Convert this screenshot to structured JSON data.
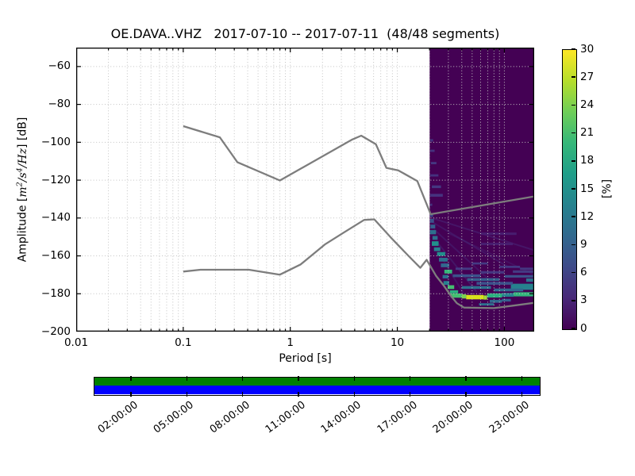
{
  "chart_data": {
    "type": "heatmap",
    "title": "OE.DAVA..VHZ   2017-07-10 -- 2017-07-11  (48/48 segments)",
    "xlabel": "Period [s]",
    "ylabel": {
      "prefix": "Amplitude [",
      "m": "m",
      "sup2": "2",
      "s": "/s",
      "sup4": "4",
      "hz": "/Hz",
      "suffix": "] [dB]"
    },
    "x_axis": {
      "scale": "log",
      "min": 0.01,
      "max": 190,
      "ticks": [
        {
          "v": 0.01,
          "label": "0.01"
        },
        {
          "v": 0.1,
          "label": "0.1"
        },
        {
          "v": 1,
          "label": "1"
        },
        {
          "v": 10,
          "label": "10"
        },
        {
          "v": 100,
          "label": "100"
        }
      ]
    },
    "y_axis": {
      "min": -200,
      "max": -50,
      "ticks": [
        {
          "v": -60,
          "label": "−60"
        },
        {
          "v": -80,
          "label": "−80"
        },
        {
          "v": -100,
          "label": "−100"
        },
        {
          "v": -120,
          "label": "−120"
        },
        {
          "v": -140,
          "label": "−140"
        },
        {
          "v": -160,
          "label": "−160"
        },
        {
          "v": -180,
          "label": "−180"
        },
        {
          "v": -200,
          "label": "−200"
        }
      ]
    },
    "grid": {
      "color": "#c3c3c3",
      "style": "dotted"
    },
    "colorbar": {
      "label": "[%]",
      "min": 0,
      "max": 30,
      "colormap": "viridis",
      "ticks": [
        {
          "v": 0,
          "label": "0"
        },
        {
          "v": 3,
          "label": "3"
        },
        {
          "v": 6,
          "label": "6"
        },
        {
          "v": 9,
          "label": "9"
        },
        {
          "v": 12,
          "label": "12"
        },
        {
          "v": 15,
          "label": "15"
        },
        {
          "v": 18,
          "label": "18"
        },
        {
          "v": 21,
          "label": "21"
        },
        {
          "v": 24,
          "label": "24"
        },
        {
          "v": 27,
          "label": "27"
        },
        {
          "v": 30,
          "label": "30"
        }
      ],
      "stops": [
        "#440154",
        "#482878",
        "#3e4a89",
        "#31688e",
        "#26828e",
        "#1f9e89",
        "#35b779",
        "#6ece58",
        "#b5de2b",
        "#fde725"
      ]
    },
    "noise_models": {
      "color": "#7d7d7d",
      "high": [
        [
          0.1,
          -91.5
        ],
        [
          0.22,
          -97.4
        ],
        [
          0.32,
          -110.5
        ],
        [
          0.8,
          -120.2
        ],
        [
          3.8,
          -98.5
        ],
        [
          4.6,
          -96.5
        ],
        [
          6.3,
          -101
        ],
        [
          7.9,
          -113.5
        ],
        [
          10.2,
          -114.8
        ],
        [
          15.4,
          -120.5
        ],
        [
          20.5,
          -138
        ],
        [
          190,
          -128.6
        ]
      ],
      "low": [
        [
          0.1,
          -168.3
        ],
        [
          0.145,
          -167.3
        ],
        [
          0.41,
          -167.3
        ],
        [
          0.8,
          -169.9
        ],
        [
          1.25,
          -164.5
        ],
        [
          2.1,
          -154
        ],
        [
          3.2,
          -147.5
        ],
        [
          4.9,
          -141
        ],
        [
          6.1,
          -140.7
        ],
        [
          8.7,
          -150.3
        ],
        [
          12.7,
          -160
        ],
        [
          16.4,
          -166.3
        ],
        [
          18.8,
          -162.1
        ],
        [
          23,
          -170.5
        ],
        [
          27,
          -175.5
        ],
        [
          31.6,
          -181
        ],
        [
          36,
          -185
        ],
        [
          42,
          -187.3
        ],
        [
          80,
          -187.6
        ],
        [
          120,
          -186.3
        ],
        [
          190,
          -184.8
        ]
      ]
    },
    "histogram": {
      "period_min": 20,
      "period_max": 190,
      "background": "#440154",
      "streaks": [
        [
          20.3,
          21.6,
          -99,
          1.3,
          "#45317e"
        ],
        [
          20.3,
          22.3,
          -104.5,
          1.2,
          "#45317e"
        ],
        [
          20.6,
          23.2,
          -111,
          1.2,
          "#453781"
        ],
        [
          20.3,
          24.2,
          -117.5,
          1.2,
          "#45317e"
        ],
        [
          21,
          25.6,
          -123.5,
          1.4,
          "#453781"
        ],
        [
          20.3,
          26.6,
          -128,
          1.5,
          "#46337f"
        ],
        [
          20.3,
          21.2,
          -133,
          1.2,
          "#45317e"
        ],
        [
          20.2,
          21.6,
          -138.5,
          1.8,
          "#3f4889"
        ],
        [
          20.2,
          22,
          -141.5,
          2,
          "#3b528b"
        ],
        [
          20.4,
          22.6,
          -144.5,
          2,
          "#355f8d"
        ],
        [
          20.2,
          23,
          -147.5,
          2.2,
          "#2d708e"
        ],
        [
          21.3,
          23.8,
          -150.5,
          2,
          "#2d708e"
        ],
        [
          21,
          24.3,
          -153.5,
          2.4,
          "#21918c"
        ],
        [
          22,
          25.2,
          -156.5,
          2,
          "#27808e"
        ],
        [
          23.5,
          28,
          -159,
          2,
          "#21918c"
        ],
        [
          24.5,
          29.5,
          -162,
          2,
          "#2d708e"
        ],
        [
          25.5,
          30.5,
          -165,
          2,
          "#31688e"
        ],
        [
          27.5,
          32.5,
          -168.3,
          2,
          "#35b779"
        ],
        [
          26.5,
          30,
          -171,
          1.8,
          "#2d708e"
        ],
        [
          27,
          30.5,
          -174.3,
          2,
          "#26828e"
        ],
        [
          29.5,
          34,
          -176.5,
          2,
          "#44bf70"
        ],
        [
          31,
          37,
          -179,
          1.6,
          "#2ab07f"
        ],
        [
          31.5,
          40,
          -181,
          2.2,
          "#44bf70"
        ],
        [
          40,
          44,
          -181.4,
          2.2,
          "#7ad151"
        ],
        [
          44,
          64,
          -181.8,
          2.3,
          "#d8e219"
        ],
        [
          64,
          69,
          -182,
          2.2,
          "#a5db36"
        ],
        [
          69,
          95,
          -180.9,
          2.2,
          "#2ab07f"
        ],
        [
          95,
          122,
          -180.6,
          2,
          "#26828e"
        ],
        [
          122,
          190,
          -180.3,
          2.2,
          "#31b57b"
        ],
        [
          115,
          190,
          -176.3,
          3.2,
          "#26828e"
        ],
        [
          160,
          190,
          -172.8,
          1.8,
          "#2c728e"
        ],
        [
          73,
          95,
          -184,
          1.5,
          "#31688e"
        ],
        [
          58,
          80,
          -185.6,
          1.2,
          "#2d708e"
        ],
        [
          95,
          115,
          -183.4,
          1.4,
          "#355f8d"
        ],
        [
          33,
          60,
          -170.5,
          1.5,
          "#3b528b"
        ],
        [
          45,
          90,
          -172.5,
          1.5,
          "#355f8d"
        ],
        [
          55,
          120,
          -174.5,
          1.5,
          "#3b528b"
        ],
        [
          40,
          75,
          -176.7,
          1.5,
          "#2d708e"
        ],
        [
          80,
          150,
          -178,
          1.5,
          "#31688e"
        ],
        [
          100,
          190,
          -170.8,
          1.3,
          "#3b528b"
        ],
        [
          120,
          190,
          -168.3,
          1.3,
          "#443a83"
        ],
        [
          35,
          50,
          -166.8,
          1.2,
          "#443a83"
        ],
        [
          60,
          100,
          -168.7,
          1.3,
          "#453781"
        ],
        [
          90,
          140,
          -165.8,
          1.1,
          "#443a83"
        ],
        [
          140,
          190,
          -166.8,
          1.2,
          "#453781"
        ],
        [
          50,
          70,
          -164,
          1.1,
          "#443a83"
        ],
        [
          60,
          130,
          -148.3,
          1.3,
          "#481d6f"
        ],
        [
          60,
          120,
          -153.7,
          1.3,
          "#481d6f"
        ]
      ],
      "traces": [
        {
          "pts": [
            [
              21,
              -140
            ],
            [
              190,
              -157
            ]
          ],
          "color": "#472a7a",
          "w": 2,
          "o": 0.5
        },
        {
          "pts": [
            [
              21,
              -142
            ],
            [
              110,
              -166
            ]
          ],
          "color": "#472a7a",
          "w": 2,
          "o": 0.45
        },
        {
          "pts": [
            [
              22,
              -146
            ],
            [
              70,
              -172
            ]
          ],
          "color": "#472a7a",
          "w": 2,
          "o": 0.45
        },
        {
          "pts": [
            [
              23,
              -152
            ],
            [
              55,
              -179
            ]
          ],
          "color": "#453781",
          "w": 2,
          "o": 0.4
        },
        {
          "pts": [
            [
              24,
              -158
            ],
            [
              45,
              -183
            ]
          ],
          "color": "#453781",
          "w": 2,
          "o": 0.35
        },
        {
          "pts": [
            [
              30,
              -148
            ],
            [
              190,
              -170
            ]
          ],
          "color": "#472a7a",
          "w": 2,
          "o": 0.35
        }
      ]
    },
    "coverage": {
      "green": "#008000",
      "blue": "#0000ff",
      "span_hours": 24,
      "labels": [
        {
          "hour": 2,
          "text": "02:00:00"
        },
        {
          "hour": 5,
          "text": "05:00:00"
        },
        {
          "hour": 8,
          "text": "08:00:00"
        },
        {
          "hour": 11,
          "text": "11:00:00"
        },
        {
          "hour": 14,
          "text": "14:00:00"
        },
        {
          "hour": 17,
          "text": "17:00:00"
        },
        {
          "hour": 20,
          "text": "20:00:00"
        },
        {
          "hour": 23,
          "text": "23:00:00"
        }
      ]
    }
  }
}
